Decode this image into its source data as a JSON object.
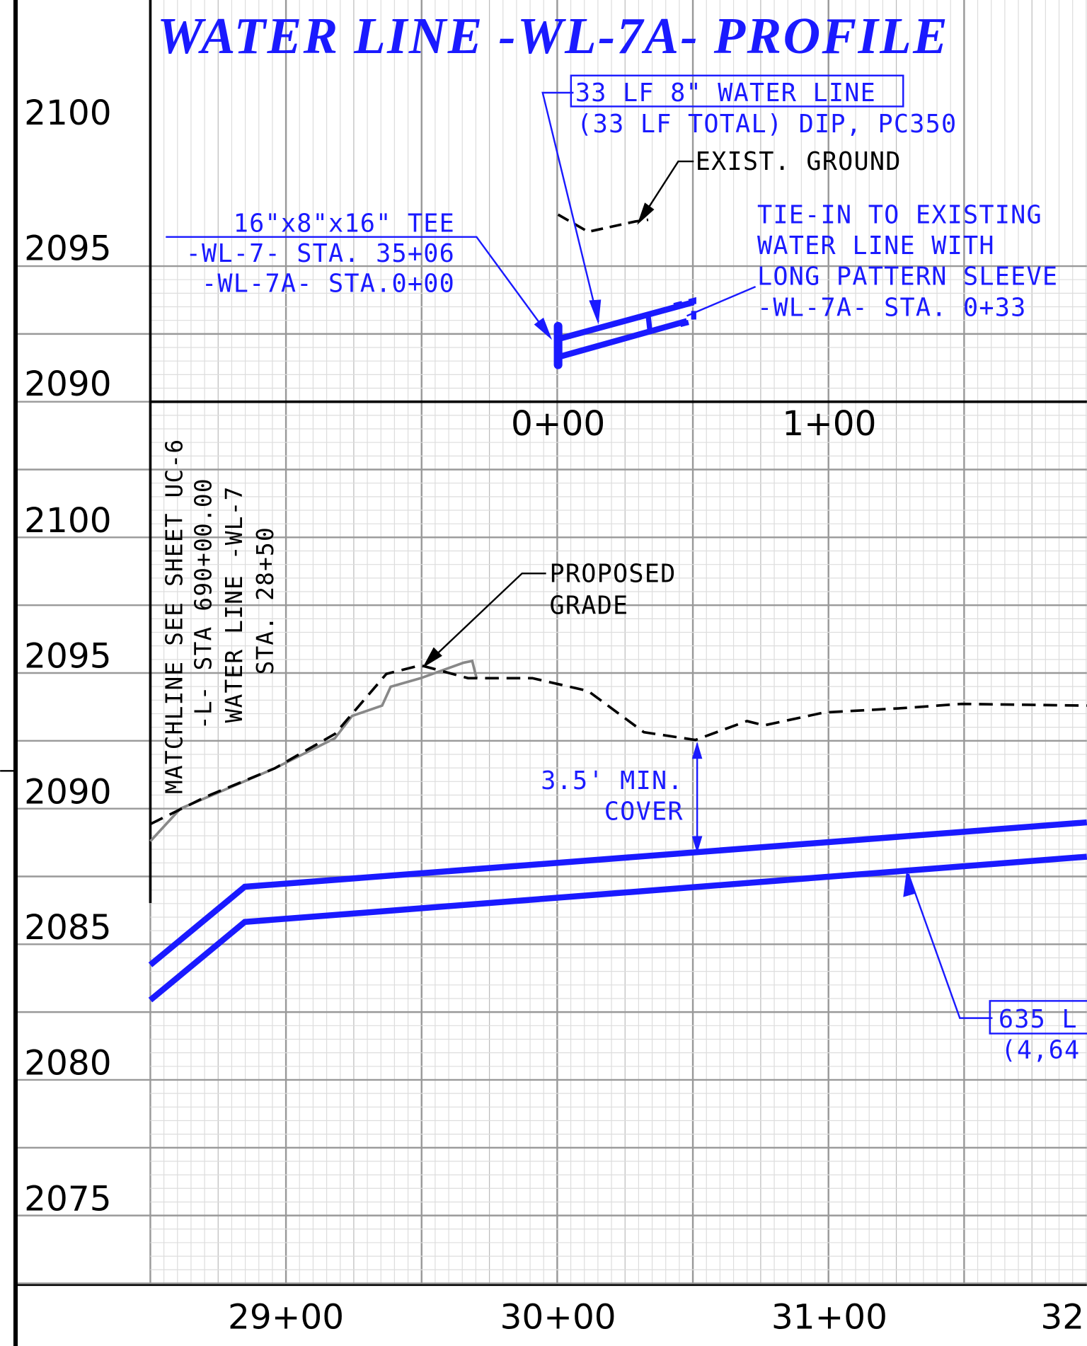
{
  "title": "WATER LINE -WL-7A- PROFILE",
  "upper_profile": {
    "elevations": [
      "2100",
      "2095",
      "2090"
    ],
    "stations": [
      "0+00",
      "1+00"
    ],
    "callouts": {
      "water_line": [
        "33 LF 8\" WATER LINE",
        "(33 LF TOTAL) DIP, PC350"
      ],
      "exist_ground": "EXIST. GROUND",
      "tee": [
        "16\"x8\"x16\" TEE",
        "-WL-7- STA. 35+06",
        "-WL-7A- STA.0+00"
      ],
      "tie_in": [
        "TIE-IN TO EXISTING",
        "WATER LINE WITH",
        "LONG PATTERN SLEEVE",
        "-WL-7A- STA. 0+33"
      ]
    }
  },
  "lower_profile": {
    "elevations": [
      "2100",
      "2095",
      "2090",
      "2085",
      "2080",
      "2075"
    ],
    "stations": [
      "29+00",
      "30+00",
      "31+00",
      "32"
    ],
    "matchline": [
      "MATCHLINE  SEE SHEET UC-6",
      "-L- STA 690+00.00",
      "WATER LINE -WL-7",
      "STA. 28+50"
    ],
    "proposed_grade": [
      "PROPOSED",
      "GRADE"
    ],
    "min_cover": [
      "3.5' MIN.",
      "COVER"
    ],
    "pipe_callout": [
      "635 L",
      "(4,64"
    ]
  }
}
